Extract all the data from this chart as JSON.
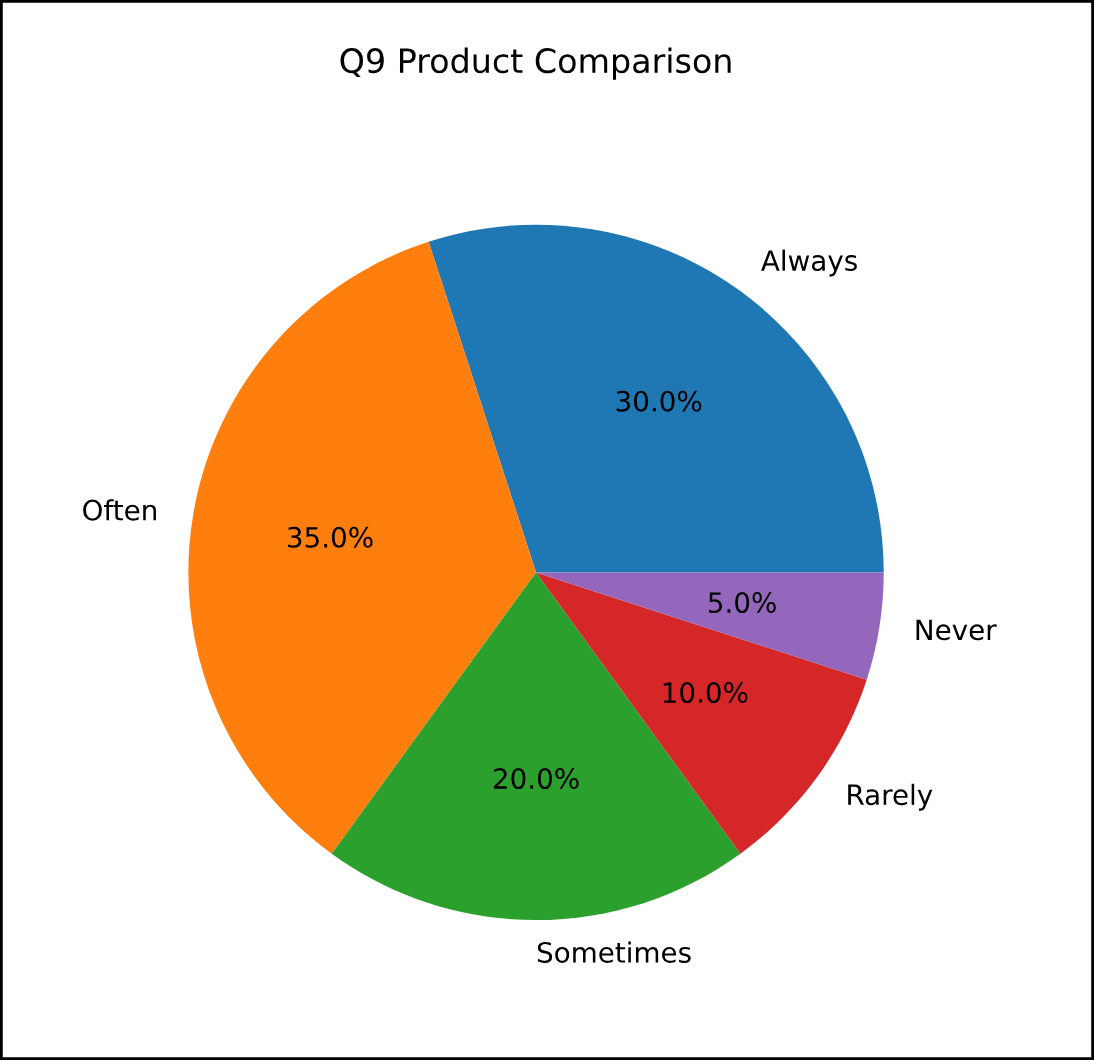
{
  "chart_data": {
    "type": "pie",
    "title": "Q9 Product Comparison",
    "categories": [
      "Always",
      "Often",
      "Sometimes",
      "Rarely",
      "Never"
    ],
    "values": [
      30,
      35,
      20,
      10,
      5
    ],
    "colors": [
      "#1f77b4",
      "#ff7f0e",
      "#2ca02c",
      "#d62728",
      "#9467bd"
    ],
    "value_labels": [
      "30.0%",
      "35.0%",
      "20.0%",
      "10.0%",
      "5.0%"
    ]
  }
}
